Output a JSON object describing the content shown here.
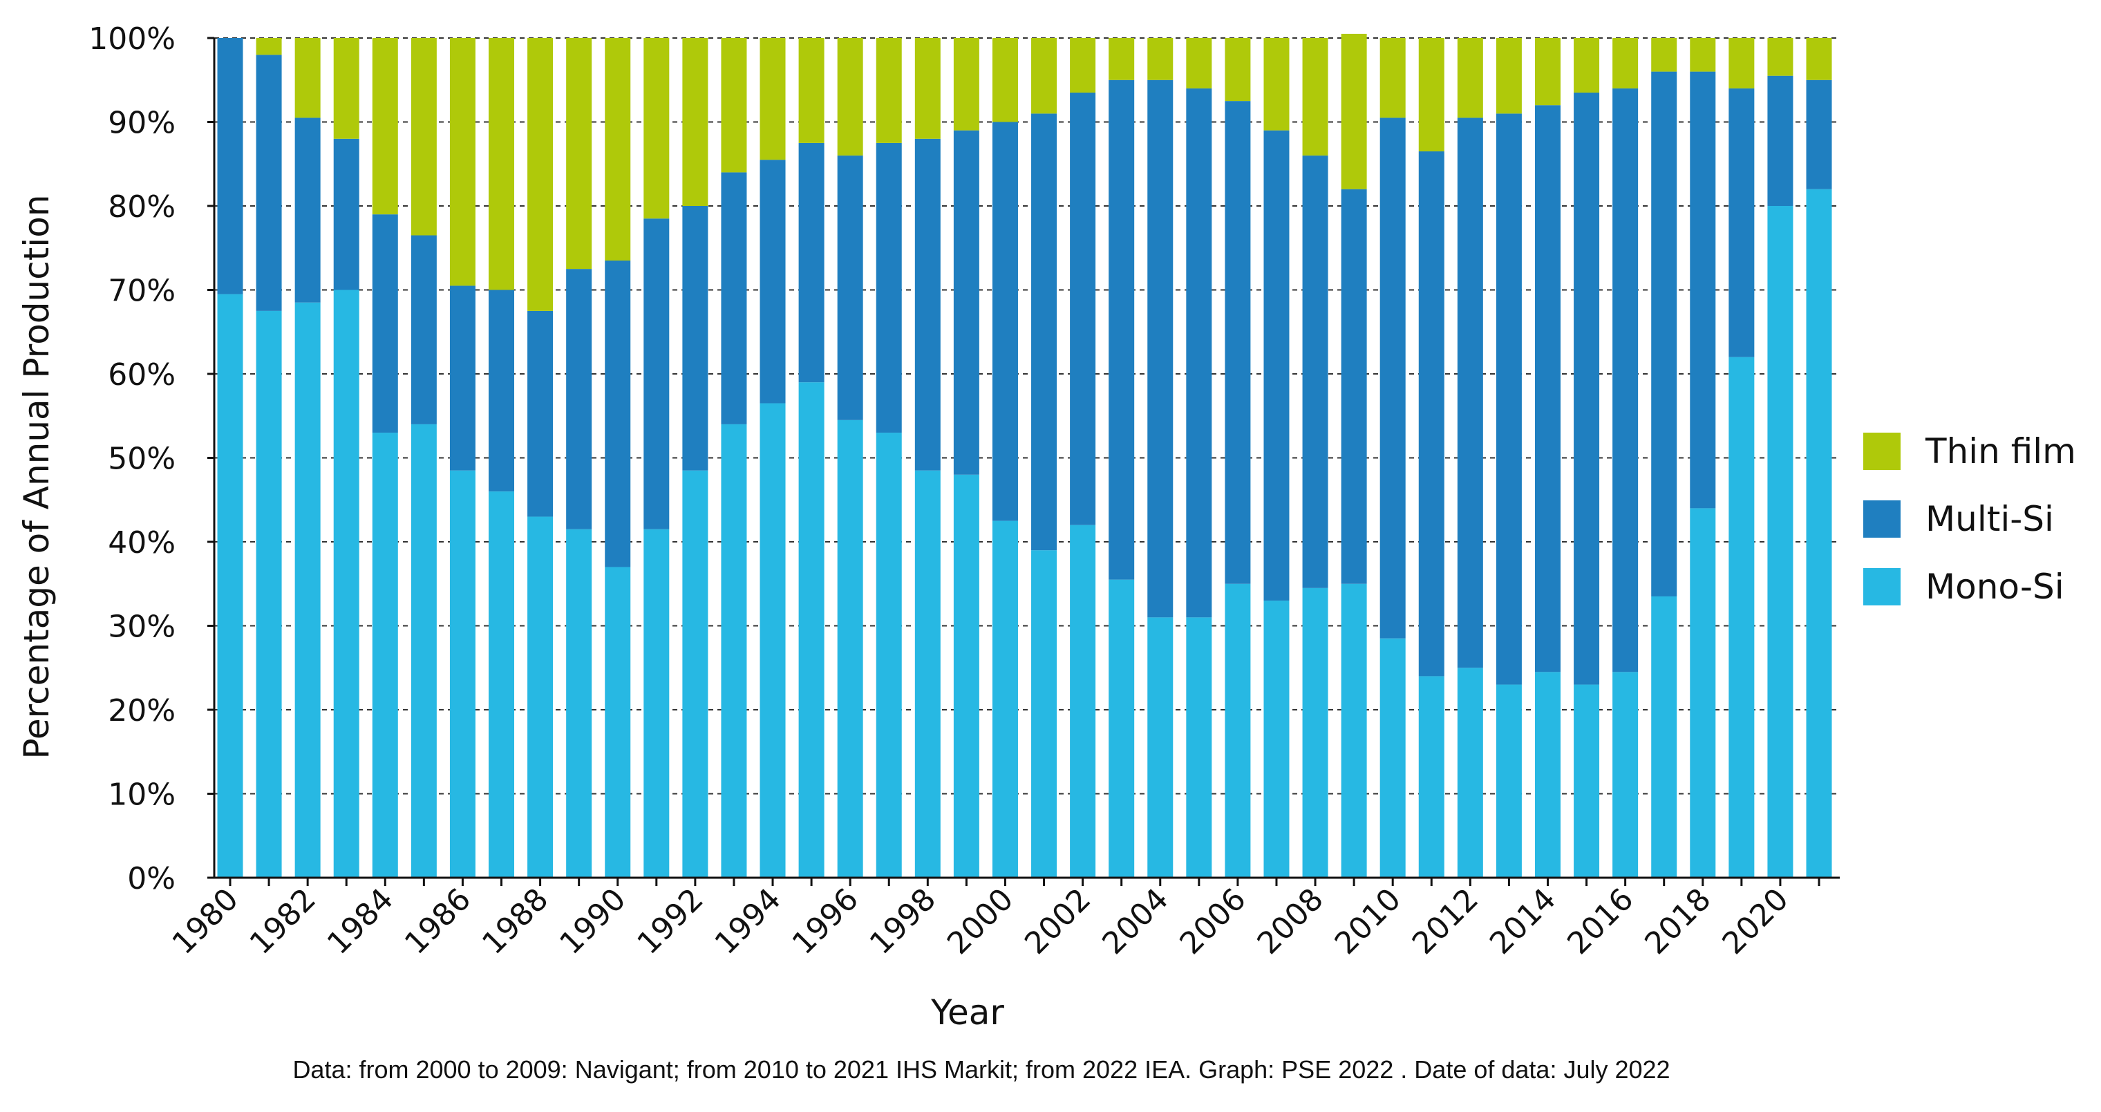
{
  "chart_data": {
    "type": "bar",
    "stacked": true,
    "title": "",
    "xlabel": "Year",
    "ylabel": "Percentage of Annual Production",
    "ylim": [
      0,
      100
    ],
    "y_ticks": [
      "0%",
      "10%",
      "20%",
      "30%",
      "40%",
      "50%",
      "60%",
      "70%",
      "80%",
      "90%",
      "100%"
    ],
    "grid": "horizontal dashed",
    "legend_position": "right",
    "x_tick_labels": [
      "1980",
      "1982",
      "1984",
      "1986",
      "1988",
      "1990",
      "1992",
      "1994",
      "1996",
      "1998",
      "2000",
      "2002",
      "2004",
      "2006",
      "2008",
      "2010",
      "2012",
      "2014",
      "2016",
      "2018",
      "2020"
    ],
    "categories": [
      "1980",
      "1981",
      "1982",
      "1983",
      "1984",
      "1985",
      "1986",
      "1987",
      "1988",
      "1989",
      "1990",
      "1991",
      "1992",
      "1993",
      "1994",
      "1995",
      "1996",
      "1997",
      "1998",
      "1999",
      "2000",
      "2001",
      "2002",
      "2003",
      "2004",
      "2005",
      "2006",
      "2007",
      "2008",
      "2009",
      "2010",
      "2011",
      "2012",
      "2013",
      "2014",
      "2015",
      "2016",
      "2017",
      "2018",
      "2019",
      "2020",
      "2021"
    ],
    "series": [
      {
        "name": "Mono-Si",
        "color": "#27b8e3",
        "values": [
          69.5,
          67.5,
          68.5,
          70,
          53,
          54,
          48.5,
          46,
          43,
          41.5,
          37,
          41.5,
          48.5,
          54,
          56.5,
          59,
          54.5,
          53,
          48.5,
          48,
          42.5,
          39,
          42,
          35.5,
          31,
          31,
          35,
          33,
          34.5,
          35,
          28.5,
          24,
          25,
          23,
          24.5,
          23,
          24.5,
          33.5,
          44,
          62,
          80,
          82
        ]
      },
      {
        "name": "Multi-Si",
        "color": "#1f7fc0",
        "values": [
          30.5,
          30.5,
          22,
          18,
          26,
          22.5,
          22,
          24,
          24.5,
          31,
          36.5,
          37,
          31.5,
          30,
          29,
          28.5,
          31.5,
          34.5,
          39.5,
          41,
          47.5,
          52,
          51.5,
          59.5,
          64,
          63,
          57.5,
          56,
          51.5,
          47,
          62,
          62.5,
          65.5,
          68,
          67.5,
          70.5,
          69.5,
          62.5,
          52,
          32,
          15.5,
          13
        ]
      },
      {
        "name": "Thin film",
        "color": "#afc90a",
        "values": [
          0,
          2,
          9.5,
          12,
          21,
          23.5,
          29.5,
          30,
          32.5,
          27.5,
          26.5,
          21.5,
          20,
          16,
          14.5,
          12.5,
          14,
          12.5,
          12,
          11,
          10,
          9,
          6.5,
          5,
          5,
          6,
          7.5,
          11,
          14,
          18.5,
          9.5,
          13.5,
          9.5,
          9,
          8,
          6.5,
          6,
          4,
          4,
          6,
          4.5,
          5
        ]
      }
    ],
    "legend": [
      "Thin film",
      "Multi-Si",
      "Mono-Si"
    ],
    "caption": "Data: from 2000 to 2009: Navigant; from 2010 to 2021 IHS Markit; from 2022 IEA. Graph: PSE 2022 . Date of data: July 2022"
  }
}
